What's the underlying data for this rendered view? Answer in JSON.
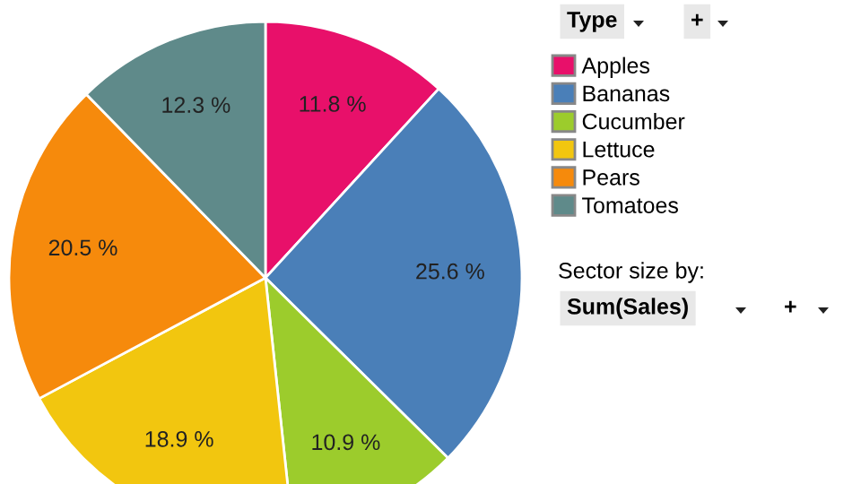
{
  "chart_data": {
    "type": "pie",
    "legend_title": "Type",
    "legend": "right",
    "categories": [
      "Apples",
      "Bananas",
      "Cucumber",
      "Lettuce",
      "Pears",
      "Tomatoes"
    ],
    "values": [
      11.8,
      25.6,
      10.9,
      18.9,
      20.5,
      12.3
    ],
    "value_labels": [
      "11.8 %",
      "25.6 %",
      "10.9 %",
      "18.9 %",
      "20.5 %",
      "12.3 %"
    ],
    "colors": [
      "#e8106a",
      "#4a7fb8",
      "#9ccc2c",
      "#f2c60f",
      "#f68a0c",
      "#5f8a8a"
    ],
    "annotations": [
      "+",
      "Sector size by:",
      "Sum(Sales)",
      "+"
    ]
  }
}
